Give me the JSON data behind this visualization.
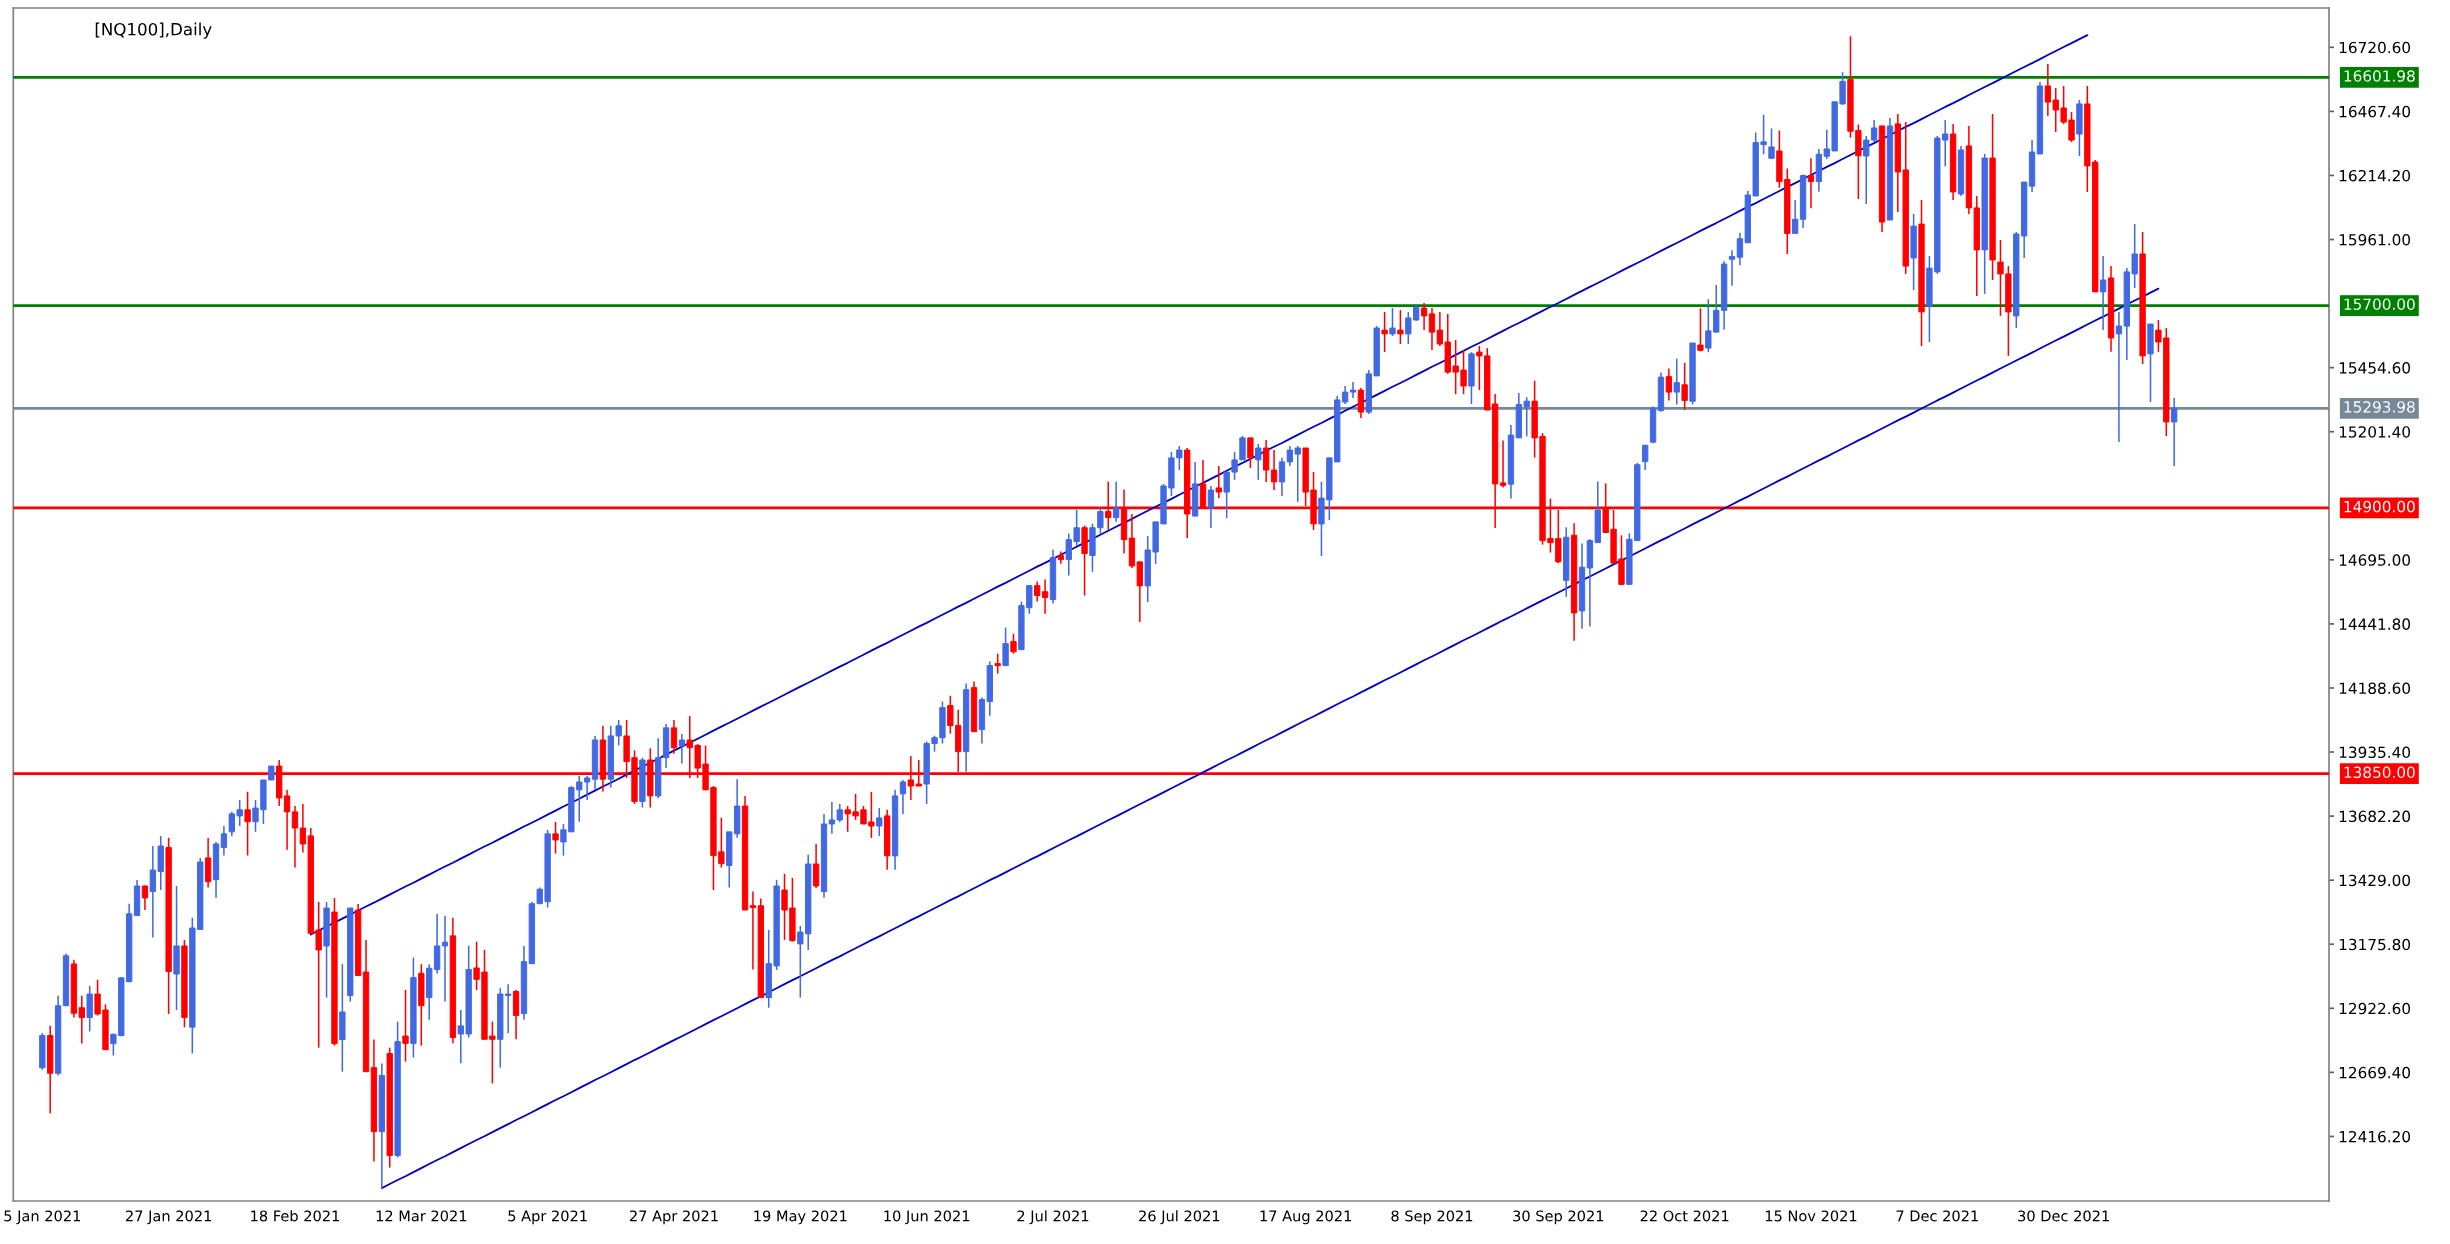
{
  "chart_data": {
    "type": "candlestick",
    "title": "[NQ100],Daily",
    "categories": [
      "5 Jan 2021",
      null,
      null,
      null,
      null,
      null,
      null,
      null,
      null,
      null,
      null,
      null,
      null,
      null,
      null,
      null,
      "27 Jan 2021",
      null,
      null,
      null,
      null,
      null,
      null,
      null,
      null,
      null,
      null,
      null,
      null,
      null,
      null,
      null,
      "18 Feb 2021",
      null,
      null,
      null,
      null,
      null,
      null,
      null,
      null,
      null,
      null,
      null,
      null,
      null,
      null,
      null,
      "12 Mar 2021",
      null,
      null,
      null,
      null,
      null,
      null,
      null,
      null,
      null,
      null,
      null,
      null,
      null,
      null,
      null,
      "5 Apr 2021",
      null,
      null,
      null,
      null,
      null,
      null,
      null,
      null,
      null,
      null,
      null,
      null,
      null,
      null,
      null,
      "27 Apr 2021",
      null,
      null,
      null,
      null,
      null,
      null,
      null,
      null,
      null,
      null,
      null,
      null,
      null,
      null,
      null,
      "19 May 2021",
      null,
      null,
      null,
      null,
      null,
      null,
      null,
      null,
      null,
      null,
      null,
      null,
      null,
      null,
      null,
      "10 Jun 2021",
      null,
      null,
      null,
      null,
      null,
      null,
      null,
      null,
      null,
      null,
      null,
      null,
      null,
      null,
      null,
      "2 Jul 2021",
      null,
      null,
      null,
      null,
      null,
      null,
      null,
      null,
      null,
      null,
      null,
      null,
      null,
      null,
      null,
      "26 Jul 2021",
      null,
      null,
      null,
      null,
      null,
      null,
      null,
      null,
      null,
      null,
      null,
      null,
      null,
      null,
      null,
      "17 Aug 2021",
      null,
      null,
      null,
      null,
      null,
      null,
      null,
      null,
      null,
      null,
      null,
      null,
      null,
      null,
      null,
      "8 Sep 2021",
      null,
      null,
      null,
      null,
      null,
      null,
      null,
      null,
      null,
      null,
      null,
      null,
      null,
      null,
      null,
      "30 Sep 2021",
      null,
      null,
      null,
      null,
      null,
      null,
      null,
      null,
      null,
      null,
      null,
      null,
      null,
      null,
      null,
      "22 Oct 2021",
      null,
      null,
      null,
      null,
      null,
      null,
      null,
      null,
      null,
      null,
      null,
      null,
      null,
      null,
      null,
      "15 Nov 2021",
      null,
      null,
      null,
      null,
      null,
      null,
      null,
      null,
      null,
      null,
      null,
      null,
      null,
      null,
      null,
      "7 Dec 2021",
      null,
      null,
      null,
      null,
      null,
      null,
      null,
      null,
      null,
      null,
      null,
      null,
      null,
      null,
      null,
      "30 Dec 2021",
      null,
      null,
      null,
      null,
      null,
      null,
      null,
      null,
      null,
      null,
      null,
      null,
      null,
      null
    ],
    "ohlc": [
      [
        12688,
        12825,
        12680,
        12815
      ],
      [
        12815,
        12854,
        12508,
        12666
      ],
      [
        12666,
        12972,
        12657,
        12933
      ],
      [
        12933,
        13139,
        12931,
        13130
      ],
      [
        13098,
        13114,
        12886,
        12903
      ],
      [
        12925,
        12972,
        12783,
        12886
      ],
      [
        12886,
        13011,
        12831,
        12979
      ],
      [
        12979,
        13035,
        12894,
        12900
      ],
      [
        12916,
        12939,
        12759,
        12759
      ],
      [
        12783,
        12822,
        12736,
        12820
      ],
      [
        12815,
        13045,
        12812,
        13043
      ],
      [
        13028,
        13336,
        13026,
        13296
      ],
      [
        13289,
        13430,
        13287,
        13406
      ],
      [
        13406,
        13408,
        13311,
        13359
      ],
      [
        13384,
        13564,
        13202,
        13469
      ],
      [
        13463,
        13604,
        13390,
        13564
      ],
      [
        13558,
        13597,
        12900,
        13068
      ],
      [
        13058,
        13406,
        12916,
        13169
      ],
      [
        13169,
        13193,
        12848,
        12886
      ],
      [
        12848,
        13280,
        12744,
        13240
      ],
      [
        13234,
        13517,
        13233,
        13501
      ],
      [
        13517,
        13596,
        13400,
        13423
      ],
      [
        13431,
        13580,
        13360,
        13572
      ],
      [
        13558,
        13643,
        13526,
        13612
      ],
      [
        13620,
        13699,
        13604,
        13691
      ],
      [
        13683,
        13746,
        13643,
        13707
      ],
      [
        13707,
        13778,
        13526,
        13660
      ],
      [
        13660,
        13746,
        13620,
        13714
      ],
      [
        13707,
        13825,
        13651,
        13825
      ],
      [
        13825,
        13880,
        13825,
        13880
      ],
      [
        13880,
        13904,
        13722,
        13754
      ],
      [
        13762,
        13786,
        13549,
        13699
      ],
      [
        13699,
        13722,
        13479,
        13635
      ],
      [
        13635,
        13730,
        13538,
        13572
      ],
      [
        13604,
        13635,
        13219,
        13219
      ],
      [
        13232,
        13343,
        12767,
        13153
      ],
      [
        13169,
        13343,
        12965,
        13319
      ],
      [
        13303,
        13359,
        12775,
        12783
      ],
      [
        12799,
        13098,
        12672,
        12908
      ],
      [
        12973,
        13319,
        12949,
        13319
      ],
      [
        13311,
        13335,
        13052,
        13052
      ],
      [
        13066,
        13193,
        12672,
        12672
      ],
      [
        12688,
        12799,
        12317,
        12435
      ],
      [
        12435,
        12704,
        12209,
        12657
      ],
      [
        12744,
        12767,
        12293,
        12341
      ],
      [
        12341,
        12870,
        12333,
        12791
      ],
      [
        12813,
        12995,
        12712,
        12784
      ],
      [
        12784,
        13123,
        12728,
        13044
      ],
      [
        13061,
        13097,
        12775,
        12933
      ],
      [
        12965,
        13097,
        12877,
        13081
      ],
      [
        13076,
        13296,
        13060,
        13169
      ],
      [
        13169,
        13288,
        12949,
        13184
      ],
      [
        13209,
        13280,
        12784,
        12807
      ],
      [
        12821,
        12916,
        12705,
        12853
      ],
      [
        12821,
        13170,
        12807,
        13076
      ],
      [
        13082,
        13186,
        12995,
        13037
      ],
      [
        13066,
        13153,
        12800,
        12800
      ],
      [
        12813,
        12870,
        12626,
        12800
      ],
      [
        12800,
        13002,
        12688,
        12979
      ],
      [
        12973,
        13018,
        12824,
        12979
      ],
      [
        12989,
        12995,
        12800,
        12894
      ],
      [
        12902,
        13169,
        12877,
        13107
      ],
      [
        13099,
        13344,
        13099,
        13336
      ],
      [
        13336,
        13400,
        13336,
        13393
      ],
      [
        13344,
        13628,
        13321,
        13612
      ],
      [
        13612,
        13659,
        13534,
        13588
      ],
      [
        13580,
        13651,
        13526,
        13628
      ],
      [
        13620,
        13801,
        13620,
        13795
      ],
      [
        13786,
        13841,
        13660,
        13817
      ],
      [
        13817,
        13841,
        13746,
        13833
      ],
      [
        13828,
        13999,
        13786,
        13983
      ],
      [
        13983,
        14039,
        13779,
        13828
      ],
      [
        13828,
        14039,
        13795,
        13999
      ],
      [
        13999,
        14062,
        13961,
        14039
      ],
      [
        13999,
        14062,
        13833,
        13898
      ],
      [
        13913,
        13942,
        13730,
        13740
      ],
      [
        13740,
        13913,
        13716,
        13904
      ],
      [
        13904,
        13950,
        13716,
        13762
      ],
      [
        13762,
        13990,
        13753,
        13913
      ],
      [
        13913,
        14046,
        13872,
        14031
      ],
      [
        14031,
        14062,
        13929,
        13953
      ],
      [
        13961,
        14007,
        13890,
        13983
      ],
      [
        13983,
        14078,
        13833,
        13953
      ],
      [
        13961,
        13967,
        13833,
        13872
      ],
      [
        13888,
        13961,
        13786,
        13786
      ],
      [
        13795,
        13801,
        13390,
        13526
      ],
      [
        13541,
        13676,
        13479,
        13494
      ],
      [
        13487,
        13620,
        13400,
        13620
      ],
      [
        13612,
        13828,
        13597,
        13722
      ],
      [
        13722,
        13762,
        13311,
        13311
      ],
      [
        13328,
        13384,
        13076,
        13321
      ],
      [
        13328,
        13357,
        12965,
        12965
      ],
      [
        12965,
        13232,
        12925,
        13099
      ],
      [
        13090,
        13430,
        13074,
        13406
      ],
      [
        13390,
        13454,
        13193,
        13311
      ],
      [
        13319,
        13438,
        13186,
        13190
      ],
      [
        13177,
        13248,
        12965,
        13224
      ],
      [
        13217,
        13529,
        13153,
        13493
      ],
      [
        13493,
        13572,
        13398,
        13406
      ],
      [
        13384,
        13691,
        13360,
        13651
      ],
      [
        13651,
        13738,
        13612,
        13667
      ],
      [
        13667,
        13730,
        13659,
        13707
      ],
      [
        13707,
        13722,
        13620,
        13691
      ],
      [
        13699,
        13770,
        13667,
        13683
      ],
      [
        13707,
        13722,
        13651,
        13651
      ],
      [
        13659,
        13778,
        13596,
        13643
      ],
      [
        13643,
        13714,
        13604,
        13675
      ],
      [
        13683,
        13707,
        13470,
        13525
      ],
      [
        13525,
        13786,
        13470,
        13762
      ],
      [
        13770,
        13825,
        13691,
        13817
      ],
      [
        13825,
        13920,
        13746,
        13801
      ],
      [
        13809,
        13904,
        13801,
        13801
      ],
      [
        13809,
        13977,
        13730,
        13969
      ],
      [
        13969,
        14000,
        13937,
        13992
      ],
      [
        13992,
        14135,
        13969,
        14111
      ],
      [
        14119,
        14158,
        14008,
        14040
      ],
      [
        14040,
        14103,
        13857,
        13937
      ],
      [
        13937,
        14206,
        13857,
        14182
      ],
      [
        14190,
        14214,
        14016,
        14016
      ],
      [
        14024,
        14151,
        13969,
        14143
      ],
      [
        14135,
        14293,
        14079,
        14277
      ],
      [
        14285,
        14324,
        14245,
        14277
      ],
      [
        14277,
        14427,
        14277,
        14364
      ],
      [
        14372,
        14403,
        14324,
        14332
      ],
      [
        14340,
        14530,
        14340,
        14514
      ],
      [
        14506,
        14593,
        14482,
        14593
      ],
      [
        14593,
        14609,
        14530,
        14554
      ],
      [
        14569,
        14617,
        14482,
        14546
      ],
      [
        14538,
        14735,
        14522,
        14704
      ],
      [
        14712,
        14728,
        14680,
        14696
      ],
      [
        14696,
        14799,
        14633,
        14775
      ],
      [
        14767,
        14893,
        14751,
        14822
      ],
      [
        14822,
        14830,
        14554,
        14720
      ],
      [
        14712,
        14838,
        14648,
        14822
      ],
      [
        14822,
        14901,
        14799,
        14886
      ],
      [
        14886,
        15004,
        14814,
        14862
      ],
      [
        14862,
        15004,
        14846,
        14901
      ],
      [
        14901,
        14973,
        14720,
        14775
      ],
      [
        14781,
        14876,
        14663,
        14671
      ],
      [
        14687,
        14687,
        14449,
        14592
      ],
      [
        14592,
        14789,
        14528,
        14734
      ],
      [
        14726,
        14845,
        14679,
        14845
      ],
      [
        14837,
        14995,
        14837,
        14987
      ],
      [
        14979,
        15121,
        14947,
        15098
      ],
      [
        15098,
        15145,
        15050,
        15129
      ],
      [
        15129,
        15137,
        14781,
        14876
      ],
      [
        14868,
        15082,
        14868,
        14995
      ],
      [
        14995,
        15090,
        14900,
        14900
      ],
      [
        14900,
        14987,
        14821,
        14971
      ],
      [
        14979,
        15066,
        14939,
        14963
      ],
      [
        14963,
        15042,
        14860,
        15042
      ],
      [
        15042,
        15121,
        15011,
        15090
      ],
      [
        15090,
        15185,
        15090,
        15177
      ],
      [
        15177,
        15177,
        15058,
        15098
      ],
      [
        15090,
        15153,
        15011,
        15137
      ],
      [
        15137,
        15169,
        15003,
        15050
      ],
      [
        15050,
        15129,
        14971,
        15003
      ],
      [
        15003,
        15098,
        14947,
        15082
      ],
      [
        15082,
        15145,
        15066,
        15129
      ],
      [
        15113,
        15145,
        14924,
        15137
      ],
      [
        15137,
        15137,
        14908,
        14963
      ],
      [
        14971,
        15042,
        14813,
        14837
      ],
      [
        14837,
        15003,
        14710,
        14939
      ],
      [
        14932,
        15098,
        14852,
        15098
      ],
      [
        15082,
        15343,
        15082,
        15327
      ],
      [
        15319,
        15382,
        15311,
        15358
      ],
      [
        15358,
        15398,
        15335,
        15366
      ],
      [
        15366,
        15374,
        15256,
        15279
      ],
      [
        15279,
        15445,
        15271,
        15430
      ],
      [
        15422,
        15619,
        15422,
        15611
      ],
      [
        15603,
        15675,
        15516,
        15588
      ],
      [
        15588,
        15690,
        15580,
        15611
      ],
      [
        15603,
        15682,
        15548,
        15588
      ],
      [
        15588,
        15675,
        15548,
        15651
      ],
      [
        15643,
        15705,
        15640,
        15692
      ],
      [
        15690,
        15710,
        15603,
        15659
      ],
      [
        15667,
        15690,
        15524,
        15595
      ],
      [
        15603,
        15675,
        15540,
        15548
      ],
      [
        15556,
        15667,
        15430,
        15437
      ],
      [
        15461,
        15564,
        15350,
        15437
      ],
      [
        15445,
        15524,
        15350,
        15382
      ],
      [
        15382,
        15516,
        15311,
        15509
      ],
      [
        15516,
        15540,
        15366,
        15501
      ],
      [
        15501,
        15532,
        15287,
        15287
      ],
      [
        15311,
        15350,
        14821,
        14995
      ],
      [
        14999,
        15167,
        14981,
        14989
      ],
      [
        14994,
        15228,
        14937,
        15188
      ],
      [
        15177,
        15354,
        15177,
        15309
      ],
      [
        15301,
        15338,
        15183,
        15322
      ],
      [
        15322,
        15403,
        15099,
        15177
      ],
      [
        15183,
        15196,
        14755,
        14771
      ],
      [
        14779,
        14937,
        14724,
        14763
      ],
      [
        14779,
        14892,
        14682,
        14687
      ],
      [
        14614,
        14824,
        14549,
        14784
      ],
      [
        14792,
        14840,
        14375,
        14485
      ],
      [
        14493,
        14760,
        14423,
        14666
      ],
      [
        14663,
        14776,
        14432,
        14771
      ],
      [
        14763,
        15005,
        14763,
        14892
      ],
      [
        14897,
        14997,
        14803,
        14803
      ],
      [
        14816,
        14892,
        14682,
        14682
      ],
      [
        14698,
        14792,
        14598,
        14598
      ],
      [
        14598,
        14800,
        14598,
        14776
      ],
      [
        14771,
        15078,
        14771,
        15071
      ],
      [
        15083,
        15148,
        15050,
        15148
      ],
      [
        15160,
        15301,
        15156,
        15293
      ],
      [
        15285,
        15435,
        15280,
        15417
      ],
      [
        15419,
        15451,
        15325,
        15358
      ],
      [
        15358,
        15490,
        15309,
        15395
      ],
      [
        15387,
        15474,
        15288,
        15325
      ],
      [
        15322,
        15552,
        15309,
        15552
      ],
      [
        15544,
        15689,
        15519,
        15523
      ],
      [
        15532,
        15725,
        15516,
        15600
      ],
      [
        15595,
        15781,
        15595,
        15681
      ],
      [
        15681,
        15875,
        15605,
        15864
      ],
      [
        15883,
        15919,
        15778,
        15894
      ],
      [
        15891,
        15988,
        15859,
        15964
      ],
      [
        15948,
        16153,
        15948,
        16137
      ],
      [
        16133,
        16384,
        16133,
        16344
      ],
      [
        16336,
        16454,
        16298,
        16347
      ],
      [
        16282,
        16400,
        16279,
        16327
      ],
      [
        16311,
        16392,
        16166,
        16190
      ],
      [
        16198,
        16242,
        15904,
        15985
      ],
      [
        15985,
        16117,
        15985,
        16041
      ],
      [
        16041,
        16218,
        16007,
        16214
      ],
      [
        16214,
        16282,
        16085,
        16190
      ],
      [
        16190,
        16319,
        16150,
        16298
      ],
      [
        16290,
        16395,
        16279,
        16319
      ],
      [
        16311,
        16505,
        16311,
        16505
      ],
      [
        16497,
        16622,
        16494,
        16586
      ],
      [
        16594,
        16764,
        16363,
        16389
      ],
      [
        16392,
        16416,
        16121,
        16292
      ],
      [
        16291,
        16370,
        16101,
        16354
      ],
      [
        16354,
        16433,
        16346,
        16402
      ],
      [
        16410,
        16410,
        15991,
        16030
      ],
      [
        16038,
        16441,
        16038,
        16410
      ],
      [
        16418,
        16457,
        16070,
        16228
      ],
      [
        16236,
        16425,
        15825,
        15856
      ],
      [
        15888,
        16062,
        15761,
        16014
      ],
      [
        16022,
        16117,
        15540,
        15675
      ],
      [
        15698,
        15896,
        15556,
        15848
      ],
      [
        15833,
        16370,
        15825,
        16362
      ],
      [
        16354,
        16433,
        16251,
        16378
      ],
      [
        16378,
        16418,
        16117,
        16149
      ],
      [
        16141,
        16331,
        16133,
        16315
      ],
      [
        16331,
        16410,
        16062,
        16086
      ],
      [
        16086,
        16133,
        15738,
        15920
      ],
      [
        15920,
        16299,
        15746,
        16283
      ],
      [
        16283,
        16457,
        15801,
        15880
      ],
      [
        15872,
        15959,
        15659,
        15825
      ],
      [
        15825,
        15856,
        15501,
        15675
      ],
      [
        15659,
        15991,
        15611,
        15983
      ],
      [
        15975,
        16188,
        15888,
        16188
      ],
      [
        16172,
        16354,
        16149,
        16307
      ],
      [
        16299,
        16584,
        16299,
        16568
      ],
      [
        16568,
        16655,
        16449,
        16504
      ],
      [
        16512,
        16560,
        16386,
        16473
      ],
      [
        16481,
        16568,
        16418,
        16425
      ],
      [
        16433,
        16465,
        16346,
        16354
      ],
      [
        16378,
        16512,
        16291,
        16497
      ],
      [
        16497,
        16568,
        16149,
        16252
      ],
      [
        16267,
        16275,
        15754,
        15754
      ],
      [
        15754,
        15896,
        15603,
        15801
      ],
      [
        15809,
        15856,
        15517,
        15572
      ],
      [
        15588,
        15675,
        15161,
        15619
      ],
      [
        15619,
        15848,
        15485,
        15833
      ],
      [
        15825,
        16022,
        15769,
        15904
      ],
      [
        15904,
        15991,
        15469,
        15501
      ],
      [
        15509,
        15627,
        15319,
        15627
      ],
      [
        15603,
        15643,
        15517,
        15556
      ],
      [
        15572,
        15611,
        15184,
        15240
      ],
      [
        15240,
        15335,
        15066,
        15294
      ]
    ],
    "colors": [
      "#4169e1",
      "#ff0000",
      "#4169e1",
      "#4169e1",
      "#ff0000",
      "#ff0000",
      "#4169e1",
      "#ff0000",
      "#ff0000",
      "#4169e1",
      "#4169e1",
      "#4169e1",
      "#4169e1",
      "#ff0000",
      "#4169e1",
      "#4169e1",
      "#ff0000",
      "#4169e1",
      "#ff0000",
      "#4169e1",
      "#4169e1",
      "#ff0000",
      "#4169e1",
      "#4169e1",
      "#4169e1",
      "#4169e1",
      "#ff0000",
      "#4169e1",
      "#4169e1",
      "#4169e1",
      "#ff0000",
      "#ff0000",
      "#ff0000",
      "#ff0000",
      "#ff0000",
      "#ff0000",
      "#4169e1",
      "#ff0000",
      "#4169e1",
      "#4169e1",
      "#ff0000",
      "#ff0000",
      "#ff0000",
      "#4169e1",
      "#ff0000",
      "#4169e1",
      "#ff0000",
      "#4169e1",
      "#ff0000",
      "#4169e1",
      "#4169e1",
      "#4169e1",
      "#ff0000",
      "#4169e1",
      "#4169e1",
      "#ff0000",
      "#ff0000",
      "#ff0000",
      "#4169e1",
      "#4169e1",
      "#ff0000",
      "#4169e1",
      "#4169e1",
      "#4169e1",
      "#4169e1",
      "#ff0000",
      "#4169e1",
      "#4169e1",
      "#4169e1",
      "#4169e1",
      "#4169e1",
      "#ff0000",
      "#4169e1",
      "#4169e1",
      "#ff0000",
      "#ff0000",
      "#4169e1",
      "#ff0000",
      "#4169e1",
      "#4169e1",
      "#ff0000",
      "#4169e1",
      "#ff0000",
      "#ff0000",
      "#ff0000",
      "#ff0000",
      "#ff0000",
      "#4169e1",
      "#4169e1",
      "#ff0000",
      "#ff0000",
      "#ff0000",
      "#4169e1",
      "#4169e1",
      "#ff0000",
      "#ff0000",
      "#4169e1",
      "#4169e1",
      "#ff0000",
      "#4169e1",
      "#4169e1",
      "#4169e1",
      "#ff0000",
      "#ff0000",
      "#ff0000",
      "#ff0000",
      "#4169e1",
      "#ff0000",
      "#4169e1",
      "#4169e1",
      "#ff0000",
      "#ff0000",
      "#4169e1",
      "#4169e1",
      "#4169e1",
      "#ff0000",
      "#ff0000",
      "#4169e1",
      "#ff0000",
      "#4169e1",
      "#4169e1",
      "#ff0000",
      "#4169e1",
      "#ff0000",
      "#4169e1",
      "#4169e1",
      "#ff0000",
      "#ff0000",
      "#4169e1",
      "#ff0000",
      "#4169e1",
      "#4169e1",
      "#ff0000",
      "#4169e1",
      "#4169e1",
      "#ff0000",
      "#4169e1",
      "#ff0000",
      "#ff0000",
      "#ff0000",
      "#4169e1",
      "#4169e1",
      "#4169e1",
      "#4169e1",
      "#4169e1",
      "#ff0000",
      "#4169e1",
      "#ff0000",
      "#4169e1",
      "#ff0000",
      "#4169e1",
      "#4169e1",
      "#4169e1",
      "#ff0000",
      "#4169e1",
      "#ff0000",
      "#ff0000",
      "#4169e1",
      "#4169e1",
      "#4169e1",
      "#ff0000",
      "#ff0000",
      "#4169e1",
      "#4169e1",
      "#4169e1",
      "#4169e1",
      "#4169e1",
      "#ff0000",
      "#4169e1",
      "#4169e1",
      "#ff0000",
      "#4169e1",
      "#ff0000",
      "#4169e1",
      "#4169e1",
      "#ff0000",
      "#ff0000",
      "#ff0000",
      "#ff0000",
      "#ff0000",
      "#ff0000",
      "#4169e1",
      "#ff0000",
      "#ff0000",
      "#ff0000",
      "#ff0000",
      "#4169e1",
      "#4169e1",
      "#4169e1",
      "#ff0000",
      "#ff0000",
      "#ff0000",
      "#ff0000",
      "#4169e1",
      "#ff0000",
      "#4169e1",
      "#4169e1",
      "#4169e1",
      "#ff0000",
      "#ff0000",
      "#ff0000",
      "#4169e1",
      "#4169e1",
      "#4169e1",
      "#4169e1",
      "#4169e1",
      "#ff0000",
      "#4169e1",
      "#ff0000",
      "#4169e1",
      "#ff0000",
      "#4169e1",
      "#4169e1",
      "#4169e1",
      "#4169e1",
      "#4169e1",
      "#4169e1",
      "#4169e1",
      "#4169e1",
      "#4169e1",
      "#ff0000",
      "#ff0000",
      "#4169e1",
      "#4169e1",
      "#ff0000",
      "#4169e1",
      "#4169e1",
      "#4169e1",
      "#4169e1",
      "#ff0000",
      "#ff0000",
      "#4169e1",
      "#4169e1",
      "#ff0000",
      "#4169e1",
      "#ff0000",
      "#ff0000",
      "#4169e1",
      "#ff0000",
      "#4169e1",
      "#4169e1",
      "#4169e1",
      "#ff0000",
      "#4169e1",
      "#ff0000",
      "#ff0000",
      "#4169e1",
      "#ff0000",
      "#ff0000",
      "#ff0000",
      "#4169e1",
      "#4169e1",
      "#4169e1",
      "#4169e1",
      "#ff0000",
      "#ff0000",
      "#ff0000",
      "#ff0000",
      "#4169e1",
      "#ff0000",
      "#ff0000",
      "#4169e1",
      "#ff0000",
      "#4169e1",
      "#4169e1",
      "#4169e1",
      "#ff0000",
      "#4169e1",
      "#ff0000",
      "#ff0000",
      "#4169e1"
    ],
    "series": [
      {
        "type": "line",
        "color": "#0000cd",
        "values": [
          null,
          null,
          null,
          null,
          null,
          null,
          null,
          null,
          null,
          null,
          null,
          null,
          null,
          null,
          null,
          null,
          null,
          null,
          null,
          null,
          null,
          null,
          null,
          null,
          null,
          null,
          null,
          null,
          null,
          null,
          null,
          null,
          null,
          null,
          13214,
          13230,
          13246,
          13261,
          13277,
          13293,
          13309,
          13325,
          13340,
          13356,
          13372,
          13388,
          13404,
          13419,
          13435,
          13451,
          13467,
          13483,
          13498,
          13514,
          13530,
          13546,
          13562,
          13577,
          13593,
          13609,
          13625,
          13641,
          13656,
          13672,
          13688,
          13704,
          13720,
          13735,
          13751,
          13767,
          13783,
          13799,
          13814,
          13830,
          13846,
          13862,
          13878,
          13893,
          13909,
          13925,
          13941,
          13957,
          13972,
          13988,
          14004,
          14020,
          14036,
          14051,
          14067,
          14083,
          14099,
          14115,
          14130,
          14146,
          14162,
          14178,
          14194,
          14209,
          14225,
          14241,
          14257,
          14273,
          14288,
          14304,
          14320,
          14336,
          14352,
          14367,
          14383,
          14399,
          14415,
          14431,
          14446,
          14462,
          14478,
          14494,
          14510,
          14525,
          14541,
          14557,
          14573,
          14589,
          14604,
          14620,
          14636,
          14652,
          14668,
          14683,
          14699,
          14715,
          14731,
          14747,
          14762,
          14778,
          14794,
          14810,
          14826,
          14841,
          14857,
          14873,
          14889,
          14905,
          14920,
          14936,
          14952,
          14968,
          14984,
          14999,
          15015,
          15031,
          15047,
          15063,
          15078,
          15094,
          15110,
          15126,
          15142,
          15157,
          15173,
          15189,
          15205,
          15221,
          15236,
          15252,
          15268,
          15284,
          15300,
          15315,
          15331,
          15347,
          15363,
          15379,
          15394,
          15410,
          15426,
          15442,
          15458,
          15473,
          15489,
          15505,
          15521,
          15537,
          15552,
          15568,
          15584,
          15600,
          15616,
          15631,
          15647,
          15663,
          15679,
          15695,
          15710,
          15726,
          15742,
          15758,
          15774,
          15789,
          15805,
          15821,
          15837,
          15853,
          15868,
          15884,
          15900,
          15916,
          15932,
          15947,
          15963,
          15979,
          15995,
          16011,
          16026,
          16042,
          16058,
          16074,
          16090,
          16105,
          16121,
          16137,
          16153,
          16169,
          16184,
          16200,
          16216,
          16232,
          16248,
          16263,
          16279,
          16295,
          16311,
          16327,
          16342,
          16358,
          16374,
          16390,
          16406,
          16421,
          16437,
          16453,
          16469,
          16485,
          16500,
          16516,
          16532,
          16548,
          16564,
          16579,
          16595,
          16611,
          16627,
          16643,
          16658,
          16674,
          16690,
          16706,
          16722,
          16737,
          16753,
          16769,
          null,
          null,
          null,
          null,
          null,
          null,
          null,
          null,
          null,
          null,
          null
        ]
      },
      {
        "type": "line",
        "color": "#0000cd",
        "values": [
          null,
          null,
          null,
          null,
          null,
          null,
          null,
          null,
          null,
          null,
          null,
          null,
          null,
          null,
          null,
          null,
          null,
          null,
          null,
          null,
          null,
          null,
          null,
          null,
          null,
          null,
          null,
          null,
          null,
          null,
          null,
          null,
          null,
          null,
          null,
          null,
          null,
          null,
          null,
          null,
          null,
          null,
          null,
          12212,
          12228,
          12244,
          12259,
          12275,
          12291,
          12307,
          12323,
          12338,
          12354,
          12370,
          12386,
          12402,
          12417,
          12433,
          12449,
          12465,
          12481,
          12496,
          12512,
          12528,
          12544,
          12560,
          12575,
          12591,
          12607,
          12623,
          12639,
          12654,
          12670,
          12686,
          12702,
          12718,
          12733,
          12749,
          12765,
          12781,
          12797,
          12812,
          12828,
          12844,
          12860,
          12876,
          12891,
          12907,
          12923,
          12939,
          12955,
          12970,
          12986,
          13002,
          13018,
          13034,
          13049,
          13065,
          13081,
          13097,
          13113,
          13128,
          13144,
          13160,
          13176,
          13192,
          13207,
          13223,
          13239,
          13255,
          13271,
          13286,
          13302,
          13318,
          13334,
          13350,
          13365,
          13381,
          13397,
          13413,
          13429,
          13444,
          13460,
          13476,
          13492,
          13508,
          13523,
          13539,
          13555,
          13571,
          13587,
          13602,
          13618,
          13634,
          13650,
          13666,
          13681,
          13697,
          13713,
          13729,
          13745,
          13760,
          13776,
          13792,
          13808,
          13824,
          13839,
          13855,
          13871,
          13887,
          13903,
          13918,
          13934,
          13950,
          13966,
          13982,
          13997,
          14013,
          14029,
          14045,
          14061,
          14076,
          14092,
          14108,
          14124,
          14140,
          14155,
          14171,
          14187,
          14203,
          14219,
          14234,
          14250,
          14266,
          14282,
          14298,
          14313,
          14329,
          14345,
          14361,
          14377,
          14392,
          14408,
          14424,
          14440,
          14456,
          14471,
          14487,
          14503,
          14519,
          14535,
          14550,
          14566,
          14582,
          14598,
          14614,
          14629,
          14645,
          14661,
          14677,
          14693,
          14708,
          14724,
          14740,
          14756,
          14772,
          14787,
          14803,
          14819,
          14835,
          14851,
          14866,
          14882,
          14898,
          14914,
          14930,
          14945,
          14961,
          14977,
          14993,
          15009,
          15024,
          15040,
          15056,
          15072,
          15088,
          15103,
          15119,
          15135,
          15151,
          15167,
          15182,
          15198,
          15214,
          15230,
          15246,
          15261,
          15277,
          15293,
          15309,
          15325,
          15340,
          15356,
          15372,
          15388,
          15404,
          15419,
          15435,
          15451,
          15467,
          15483,
          15498,
          15514,
          15530,
          15546,
          15562,
          15577,
          15593,
          15609,
          15625,
          15641,
          15656,
          15672,
          15688,
          15704,
          15720,
          15735,
          15751,
          15767,
          null,
          null
        ]
      }
    ],
    "ref_lines": [
      {
        "axis": "y",
        "value": 16601.98,
        "label": "16601.98",
        "color": "#008000"
      },
      {
        "axis": "y",
        "value": 15700,
        "label": "15700.00",
        "color": "#008000"
      },
      {
        "axis": "y",
        "value": 15293.98,
        "label": "15293.98",
        "color": "#778899"
      },
      {
        "axis": "y",
        "value": 14900,
        "label": "14900.00",
        "color": "#ff0000"
      },
      {
        "axis": "y",
        "value": 13850,
        "label": "13850.00",
        "color": "#ff0000"
      }
    ],
    "ylim": [
      12161,
      16876
    ],
    "yticks": [
      {
        "value": 16720.6,
        "label": "16720.60"
      },
      {
        "value": 16467.4,
        "label": "16467.40"
      },
      {
        "value": 16214.2,
        "label": "16214.20"
      },
      {
        "value": 15961,
        "label": "15961.00"
      },
      {
        "value": 15454.6,
        "label": "15454.60"
      },
      {
        "value": 15201.4,
        "label": "15201.40"
      },
      {
        "value": 14695,
        "label": "14695.00"
      },
      {
        "value": 14441.8,
        "label": "14441.80"
      },
      {
        "value": 14188.6,
        "label": "14188.60"
      },
      {
        "value": 13935.4,
        "label": "13935.40"
      },
      {
        "value": 13682.2,
        "label": "13682.20"
      },
      {
        "value": 13429,
        "label": "13429.00"
      },
      {
        "value": 13175.8,
        "label": "13175.80"
      },
      {
        "value": 12922.6,
        "label": "12922.60"
      },
      {
        "value": 12669.4,
        "label": "12669.40"
      },
      {
        "value": 12416.2,
        "label": "12416.20"
      }
    ]
  }
}
